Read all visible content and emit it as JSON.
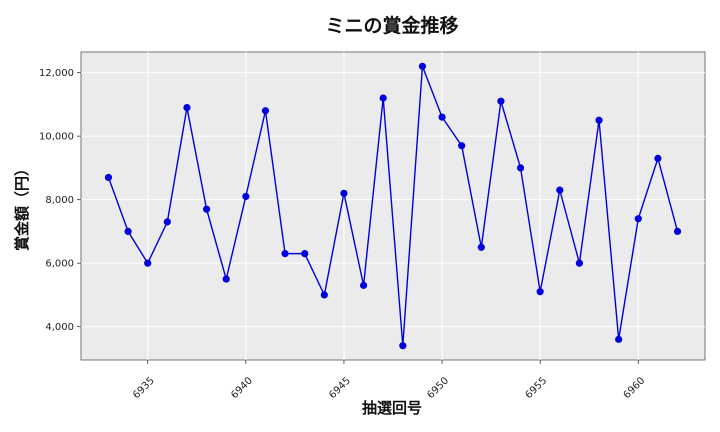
{
  "chart_data": {
    "type": "line",
    "title": "ミニの賞金推移",
    "xlabel": "抽選回号",
    "ylabel": "賞金額（円）",
    "x": [
      6933,
      6934,
      6935,
      6936,
      6937,
      6938,
      6939,
      6940,
      6941,
      6942,
      6943,
      6944,
      6945,
      6946,
      6947,
      6948,
      6949,
      6950,
      6951,
      6952,
      6953,
      6954,
      6955,
      6956,
      6957,
      6958,
      6959,
      6960,
      6961,
      6962
    ],
    "series": [
      {
        "values": [
          8700,
          7000,
          6000,
          7300,
          10900,
          7700,
          5500,
          8100,
          10800,
          6300,
          6300,
          5000,
          8200,
          5300,
          11200,
          3400,
          12200,
          10600,
          9700,
          6500,
          11100,
          9000,
          5100,
          8300,
          6000,
          10500,
          3600,
          7400,
          9300,
          7000
        ],
        "color": "#0000dd"
      }
    ],
    "xticks": [
      "6935",
      "6940",
      "6945",
      "6950",
      "6955",
      "6960"
    ],
    "yticks": [
      "4,000",
      "6,000",
      "8,000",
      "10,000",
      "12,000"
    ],
    "xlim": [
      6931.6,
      6963.4
    ],
    "ylim": [
      2950,
      12650
    ],
    "grid": true,
    "background": "#ebebeb"
  }
}
